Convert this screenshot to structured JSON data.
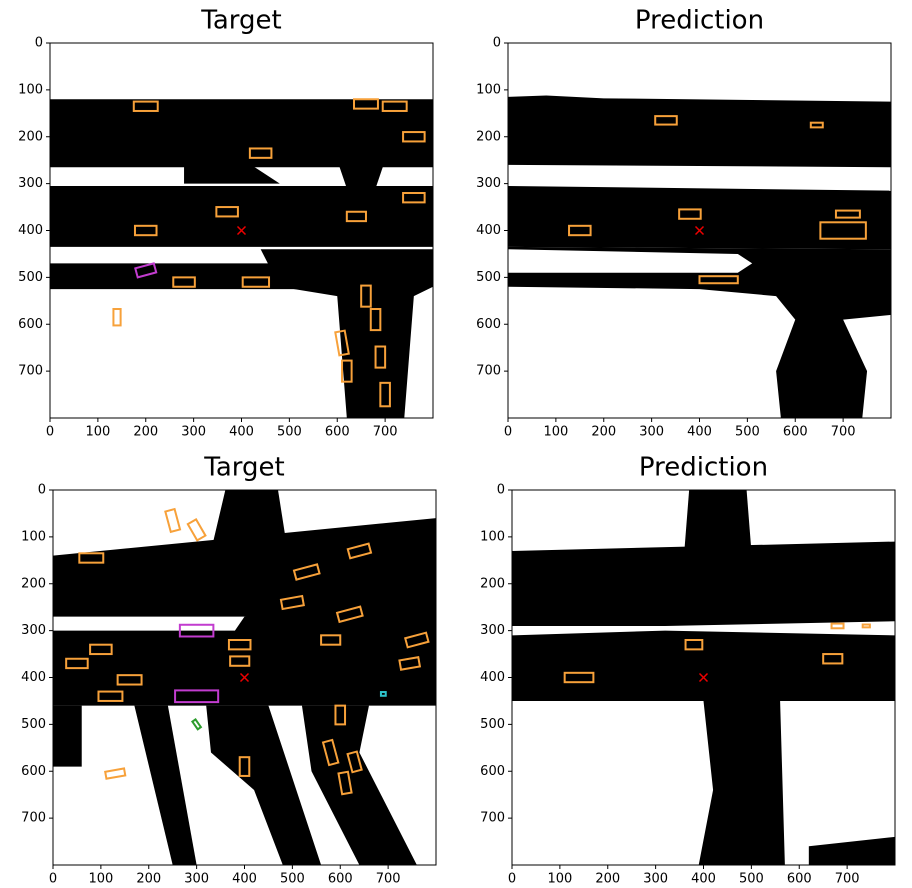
{
  "chart_data": [
    {
      "type": "image",
      "title": "Target",
      "xlim": [
        0,
        800
      ],
      "ylim": [
        800,
        0
      ],
      "xticks": [
        0,
        100,
        200,
        300,
        400,
        500,
        600,
        700
      ],
      "yticks": [
        0,
        100,
        200,
        300,
        400,
        500,
        600,
        700
      ]
    },
    {
      "type": "image",
      "title": "Prediction",
      "xlim": [
        0,
        800
      ],
      "ylim": [
        800,
        0
      ],
      "xticks": [
        0,
        100,
        200,
        300,
        400,
        500,
        600,
        700
      ],
      "yticks": [
        0,
        100,
        200,
        300,
        400,
        500,
        600,
        700
      ]
    },
    {
      "type": "image",
      "title": "Target",
      "xlim": [
        0,
        800
      ],
      "ylim": [
        800,
        0
      ],
      "xticks": [
        0,
        100,
        200,
        300,
        400,
        500,
        600,
        700
      ],
      "yticks": [
        0,
        100,
        200,
        300,
        400,
        500,
        600,
        700
      ]
    },
    {
      "type": "image",
      "title": "Prediction",
      "xlim": [
        0,
        800
      ],
      "ylim": [
        800,
        0
      ],
      "xticks": [
        0,
        100,
        200,
        300,
        400,
        500,
        600,
        700
      ],
      "yticks": [
        0,
        100,
        200,
        300,
        400,
        500,
        600,
        700
      ]
    }
  ]
}
